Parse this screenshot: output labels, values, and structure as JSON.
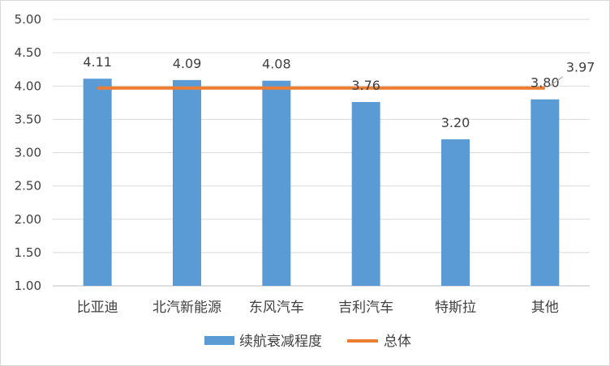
{
  "colors": {
    "bar": "#5b9bd5",
    "line": "#ed7d31",
    "grid": "#d9d9d9",
    "axis": "#bfbfbf",
    "text": "#404040",
    "border": "#d9d9d9"
  },
  "chart_data": {
    "type": "bar",
    "categories": [
      "比亚迪",
      "北汽新能源",
      "东风汽车",
      "吉利汽车",
      "特斯拉",
      "其他"
    ],
    "series": [
      {
        "name": "续航衰减程度",
        "type": "bar",
        "values": [
          4.11,
          4.09,
          4.08,
          3.76,
          3.2,
          3.8
        ]
      },
      {
        "name": "总体",
        "type": "line",
        "values": [
          3.97,
          3.97,
          3.97,
          3.97,
          3.97,
          3.97
        ]
      }
    ],
    "data_labels": [
      "4.11",
      "4.09",
      "4.08",
      "3.76",
      "3.20",
      "3.80"
    ],
    "line_label": "3.97",
    "ylim": [
      1.0,
      5.0
    ],
    "yticks": [
      "1.00",
      "1.50",
      "2.00",
      "2.50",
      "3.00",
      "3.50",
      "4.00",
      "4.50",
      "5.00"
    ],
    "grid": true,
    "legend_position": "bottom"
  }
}
